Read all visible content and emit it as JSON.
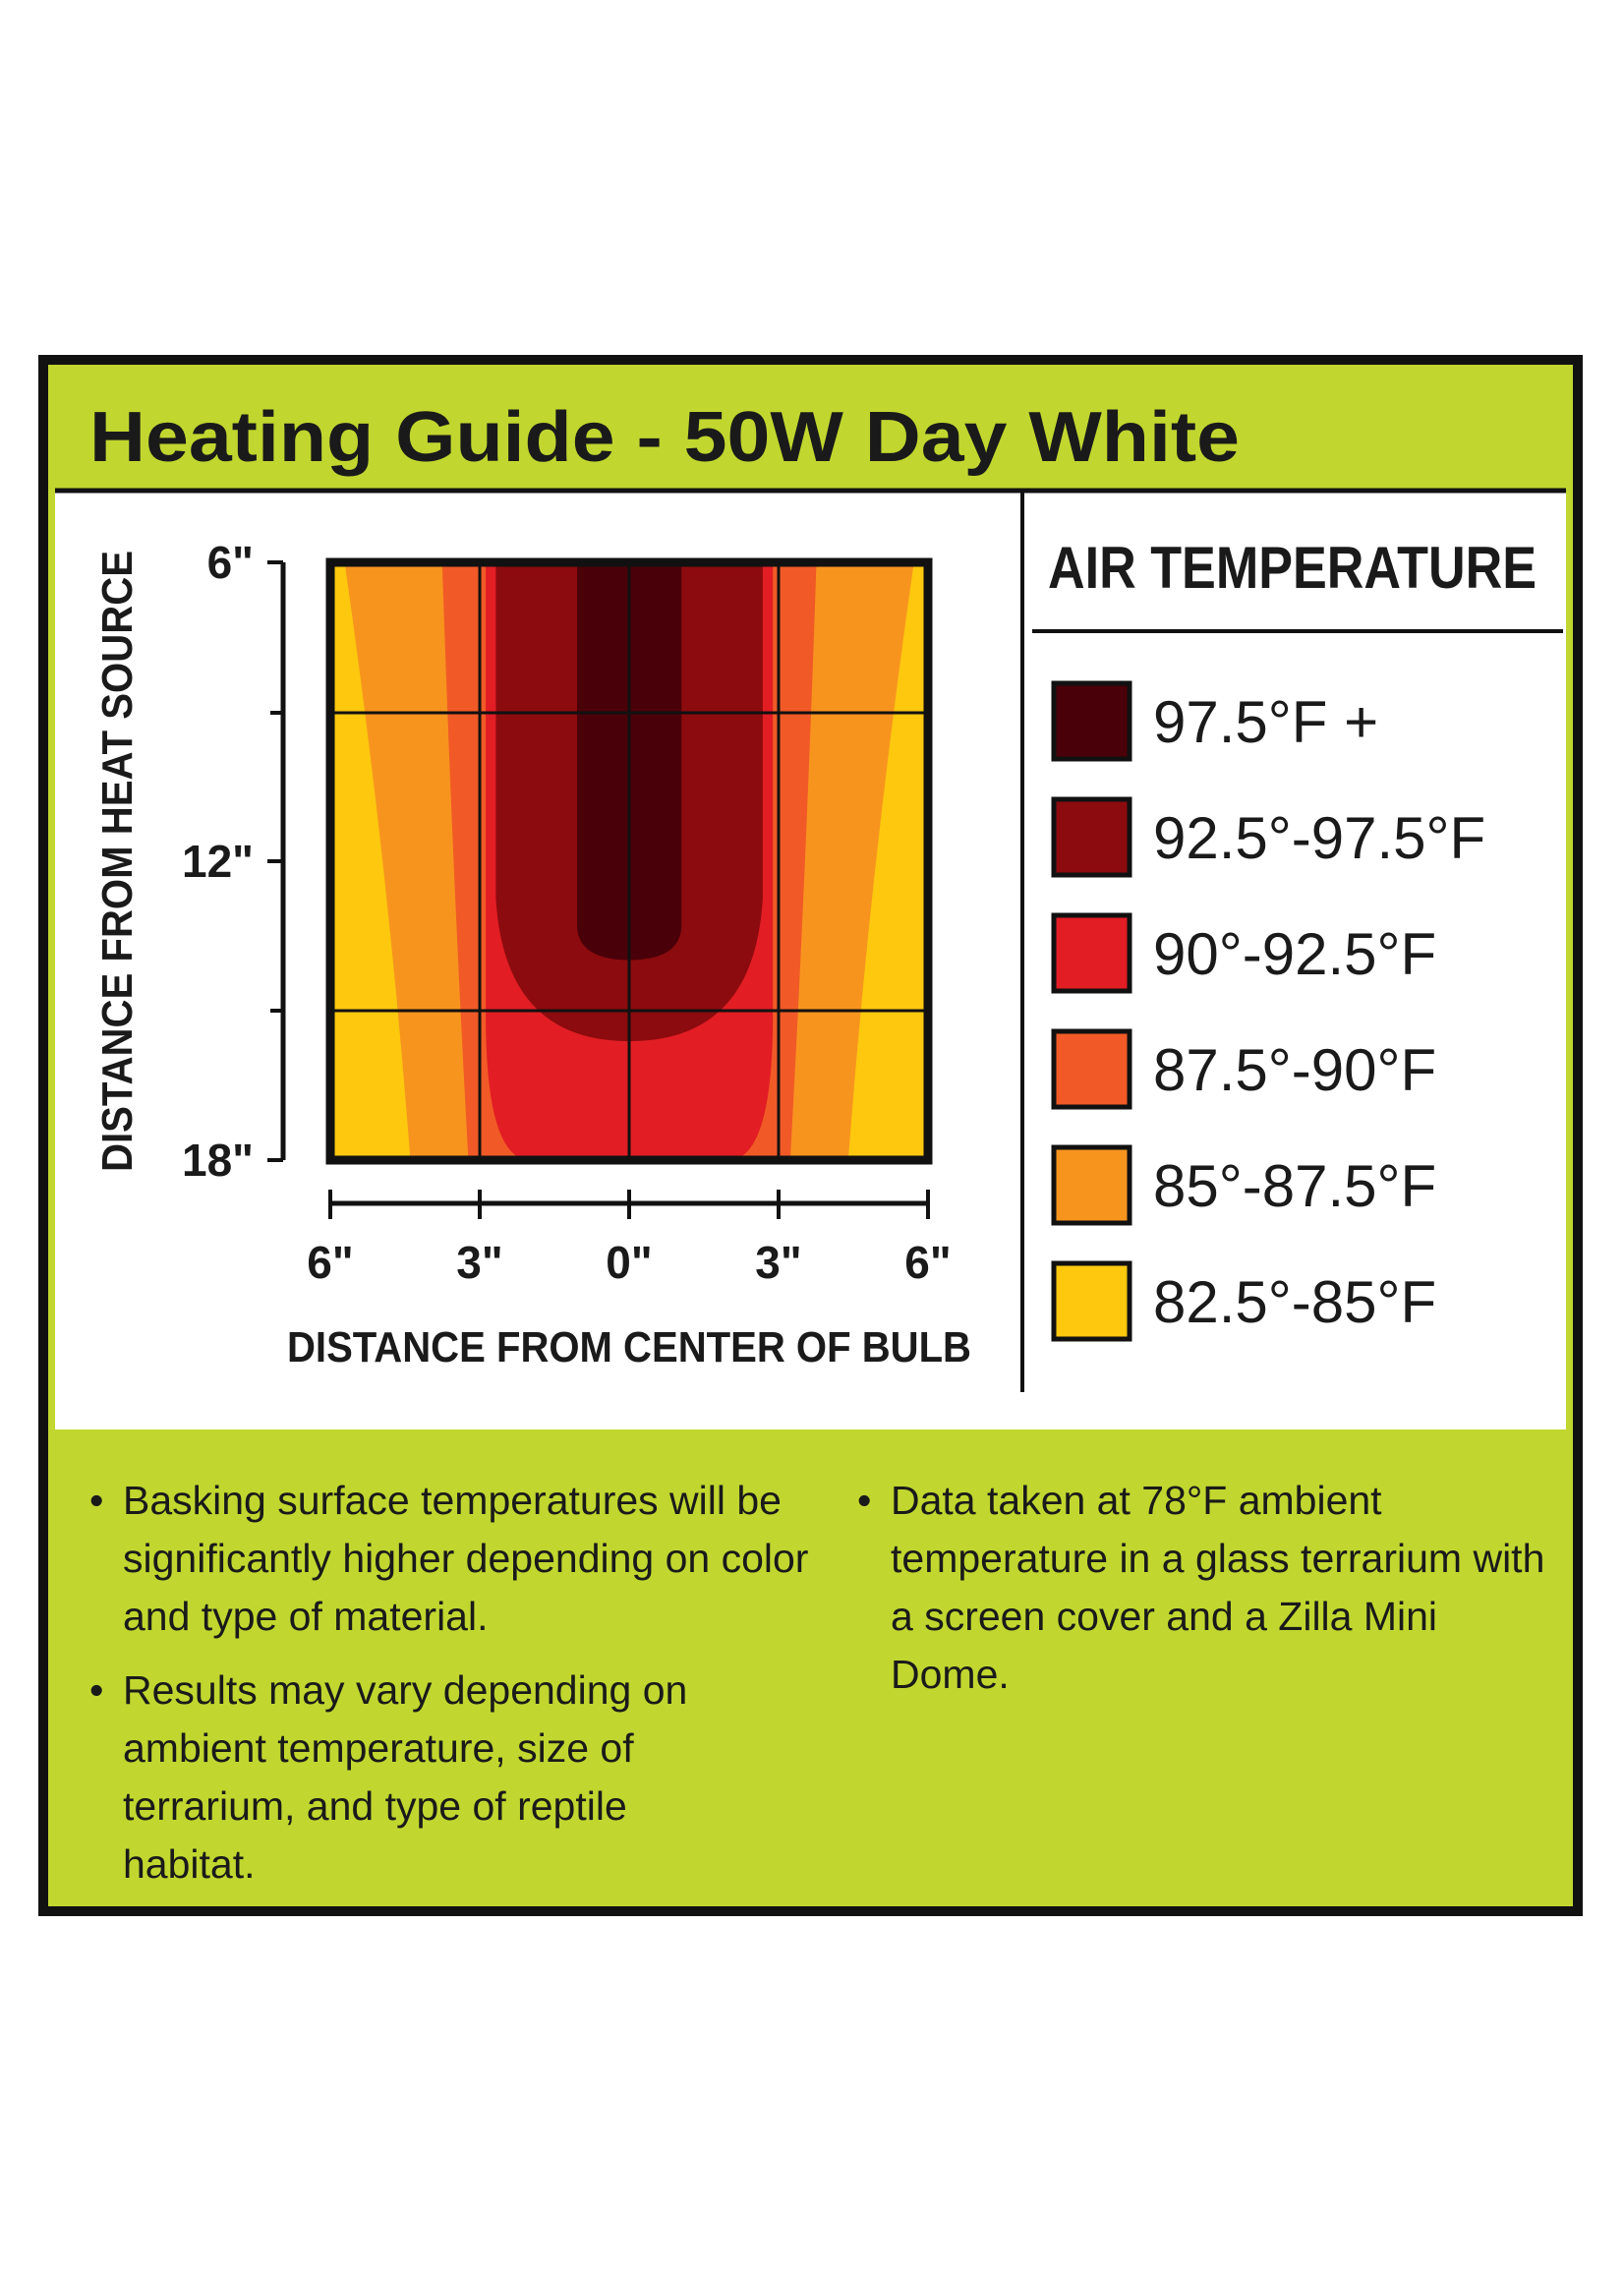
{
  "chart_data": {
    "type": "contour",
    "title": "Heating Guide - 50W Day White",
    "xlabel": "DISTANCE FROM CENTER OF BULB",
    "ylabel": "DISTANCE FROM HEAT SOURCE",
    "xlim": [
      -6,
      6
    ],
    "xticks": [
      {
        "value": -6,
        "label": "6\""
      },
      {
        "value": -3,
        "label": "3\""
      },
      {
        "value": 0,
        "label": "0\""
      },
      {
        "value": 3,
        "label": "3\""
      },
      {
        "value": 6,
        "label": "6\""
      }
    ],
    "ylim": [
      6,
      18
    ],
    "yticks": [
      {
        "value": 6,
        "label": "6\""
      },
      {
        "value": 12,
        "label": "12\""
      },
      {
        "value": 18,
        "label": "18\""
      }
    ],
    "legend_title": "AIR TEMPERATURE",
    "series": [
      {
        "name": "97.5°F +",
        "color": "#4a0008"
      },
      {
        "name": "92.5°-97.5°F",
        "color": "#8c0b0e"
      },
      {
        "name": "90°-92.5°F",
        "color": "#e21d24"
      },
      {
        "name": "87.5°-90°F",
        "color": "#f15a26"
      },
      {
        "name": "85°-87.5°F",
        "color": "#f7941e"
      },
      {
        "name": "82.5°-85°F",
        "color": "#fdc80e"
      }
    ],
    "notes": [
      "Basking surface temperatures will be significantly higher depending on color and type of material.",
      "Results may vary depending on ambient temperature, size of terrarium, and type of reptile habitat.",
      "Data taken at 78°F ambient temperature in a glass terrarium with a screen cover and a Zilla Mini Dome."
    ]
  }
}
